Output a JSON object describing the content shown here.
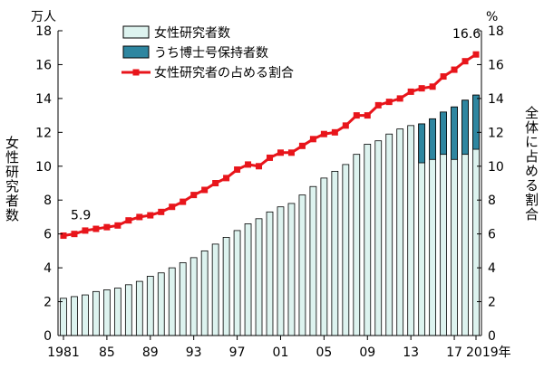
{
  "chart_data": {
    "type": "bar",
    "left_unit": "万人",
    "right_unit": "%",
    "ylabel_left": "女性研究者数",
    "ylabel_right": "全体に占める割合",
    "x_tick_labels": [
      "1981",
      "85",
      "89",
      "93",
      "97",
      "01",
      "05",
      "09",
      "13",
      "17",
      "2019年"
    ],
    "x_tick_years": [
      1981,
      1985,
      1989,
      1993,
      1997,
      2001,
      2005,
      2009,
      2013,
      2017,
      2019
    ],
    "y_ticks": [
      0,
      2,
      4,
      6,
      8,
      10,
      12,
      14,
      16,
      18
    ],
    "ylim_left": [
      0,
      18
    ],
    "ylim_right": [
      0,
      18
    ],
    "legend_position": "top-left",
    "categories": [
      1981,
      1982,
      1983,
      1984,
      1985,
      1986,
      1987,
      1988,
      1989,
      1990,
      1991,
      1992,
      1993,
      1994,
      1995,
      1996,
      1997,
      1998,
      1999,
      2000,
      2001,
      2002,
      2003,
      2004,
      2005,
      2006,
      2007,
      2008,
      2009,
      2010,
      2011,
      2012,
      2013,
      2014,
      2015,
      2016,
      2017,
      2018,
      2019
    ],
    "series": [
      {
        "name": "女性研究者数",
        "color": "#ddf3ef",
        "values": [
          2.2,
          2.3,
          2.4,
          2.6,
          2.7,
          2.8,
          3.0,
          3.2,
          3.5,
          3.7,
          4.0,
          4.3,
          4.6,
          5.0,
          5.4,
          5.8,
          6.2,
          6.6,
          6.9,
          7.3,
          7.6,
          7.8,
          8.3,
          8.8,
          9.3,
          9.7,
          10.1,
          10.7,
          11.3,
          11.5,
          11.9,
          12.2,
          12.4,
          12.5,
          12.8,
          13.2,
          13.5,
          13.9,
          14.2
        ]
      },
      {
        "name": "うち博士号保持者数",
        "color": "#2e86a0",
        "values": [
          null,
          null,
          null,
          null,
          null,
          null,
          null,
          null,
          null,
          null,
          null,
          null,
          null,
          null,
          null,
          null,
          null,
          null,
          null,
          null,
          null,
          null,
          null,
          null,
          null,
          null,
          null,
          null,
          null,
          null,
          null,
          null,
          null,
          2.3,
          2.4,
          2.5,
          3.1,
          3.2,
          3.2
        ]
      },
      {
        "name": "女性研究者の占める割合",
        "color": "#e8151b",
        "type": "line",
        "axis": "right",
        "values": [
          5.9,
          6.0,
          6.2,
          6.3,
          6.4,
          6.5,
          6.8,
          7.0,
          7.1,
          7.3,
          7.6,
          7.9,
          8.3,
          8.6,
          9.0,
          9.3,
          9.8,
          10.1,
          10.0,
          10.5,
          10.8,
          10.8,
          11.2,
          11.6,
          11.9,
          12.0,
          12.4,
          13.0,
          13.0,
          13.6,
          13.8,
          14.0,
          14.4,
          14.6,
          14.7,
          15.3,
          15.7,
          16.2,
          16.6
        ]
      }
    ],
    "annotations": [
      {
        "text": "5.9",
        "year": 1981
      },
      {
        "text": "16.6",
        "year": 2019
      }
    ]
  }
}
